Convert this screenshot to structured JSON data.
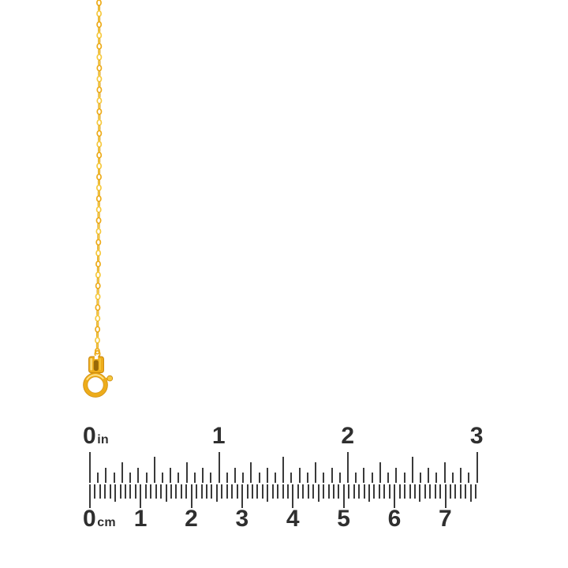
{
  "image": {
    "type": "jewelry-product-photo",
    "background": "#ffffff",
    "subject": "Thin yellow gold cable chain necklace with spring ring clasp, shown vertically next to a ruler for scale"
  },
  "necklace": {
    "chain_style": "cable-link-chain",
    "clasp_style": "spring-ring-clasp",
    "colors": {
      "gold": "#EDAC1B",
      "gold_light": "#F6C93F",
      "gold_highlight": "#FFE38A",
      "gold_dark": "#C8850A",
      "gold_shadow": "#996907"
    }
  },
  "ruler": {
    "tick_color": "#3A3A3A",
    "label_color": "#2F2F2F",
    "inch_scale": {
      "unit_suffix": "in",
      "labels": [
        "0",
        "1",
        "2",
        "3"
      ],
      "subdivisions_per_unit": 16,
      "max_value": 3
    },
    "cm_scale": {
      "unit_suffix": "cm",
      "labels": [
        "0",
        "1",
        "2",
        "3",
        "4",
        "5",
        "6",
        "7"
      ],
      "subdivisions_per_unit": 10,
      "max_value": 7.6
    }
  }
}
